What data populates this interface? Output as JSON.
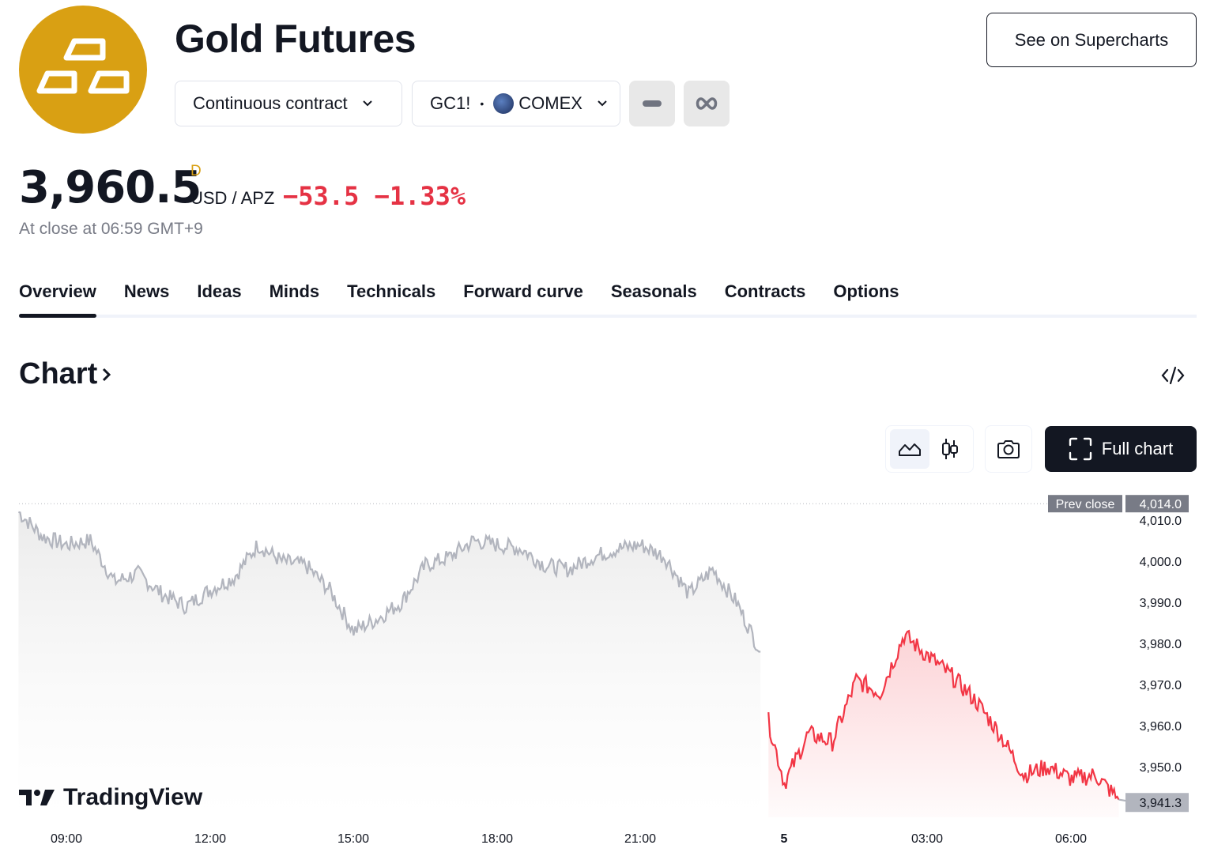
{
  "header": {
    "title": "Gold Futures",
    "contract_label": "Continuous contract",
    "symbol": "GC1!",
    "symbol_separator": "•",
    "exchange": "COMEX",
    "supercharts_label": "See on Supercharts",
    "logo_color": "#d9a013"
  },
  "quote": {
    "price": "3,960.5",
    "flag": "D",
    "unit": "USD / APZ",
    "change": "−53.5",
    "change_percent": "−1.33%",
    "close_time": "At close at 06:59 GMT+9",
    "negative_color": "#e53244"
  },
  "tabs": [
    {
      "label": "Overview",
      "active": true
    },
    {
      "label": "News"
    },
    {
      "label": "Ideas"
    },
    {
      "label": "Minds"
    },
    {
      "label": "Technicals"
    },
    {
      "label": "Forward curve"
    },
    {
      "label": "Seasonals"
    },
    {
      "label": "Contracts"
    },
    {
      "label": "Options"
    }
  ],
  "chart_section": {
    "heading": "Chart",
    "full_chart_label": "Full chart",
    "brand": "TradingView"
  },
  "chart_data": {
    "type": "line",
    "y_ticks": [
      4010.0,
      4000.0,
      3990.0,
      3980.0,
      3970.0,
      3960.0,
      3950.0
    ],
    "y_tick_labels": [
      "4,010.0",
      "4,000.0",
      "3,990.0",
      "3,980.0",
      "3,970.0",
      "3,960.0",
      "3,950.0"
    ],
    "x_tick_labels": [
      "09:00",
      "12:00",
      "15:00",
      "18:00",
      "21:00",
      "5",
      "03:00",
      "06:00"
    ],
    "prev_close": {
      "label": "Prev close",
      "value": 4014.0,
      "value_label": "4,014.0"
    },
    "last": {
      "value": 3941.3,
      "value_label": "3,941.3"
    },
    "previous_session_color": "#b2b5be",
    "current_session_color": "#f23645",
    "previous_session": {
      "x": [
        "08:00",
        "08:30",
        "09:00",
        "09:30",
        "10:00",
        "10:30",
        "11:00",
        "11:30",
        "12:00",
        "12:30",
        "13:00",
        "13:30",
        "14:00",
        "14:30",
        "15:00",
        "15:30",
        "16:00",
        "16:30",
        "17:00",
        "17:30",
        "18:00",
        "18:30",
        "19:00",
        "19:30",
        "20:00",
        "20:30",
        "21:00",
        "21:30",
        "22:00",
        "22:30",
        "23:00",
        "23:30"
      ],
      "y": [
        4012,
        4006,
        4004,
        4005,
        3995,
        3997,
        3992,
        3989,
        3993,
        3996,
        4004,
        4000,
        3999,
        3993,
        3983,
        3986,
        3990,
        3999,
        4001,
        4005,
        4004,
        4003,
        3999,
        3998,
        4001,
        4003,
        4004,
        4001,
        3992,
        3998,
        3990,
        3978
      ]
    },
    "current_session": {
      "x": [
        "23:40",
        "00:00",
        "00:30",
        "01:00",
        "01:30",
        "02:00",
        "02:30",
        "03:00",
        "03:30",
        "04:00",
        "04:30",
        "05:00",
        "05:30",
        "06:00",
        "06:30",
        "06:59"
      ],
      "y": [
        3961,
        3946,
        3958,
        3956,
        3971,
        3968,
        3982,
        3977,
        3972,
        3966,
        3958,
        3948,
        3950,
        3947,
        3948,
        3942
      ]
    }
  }
}
